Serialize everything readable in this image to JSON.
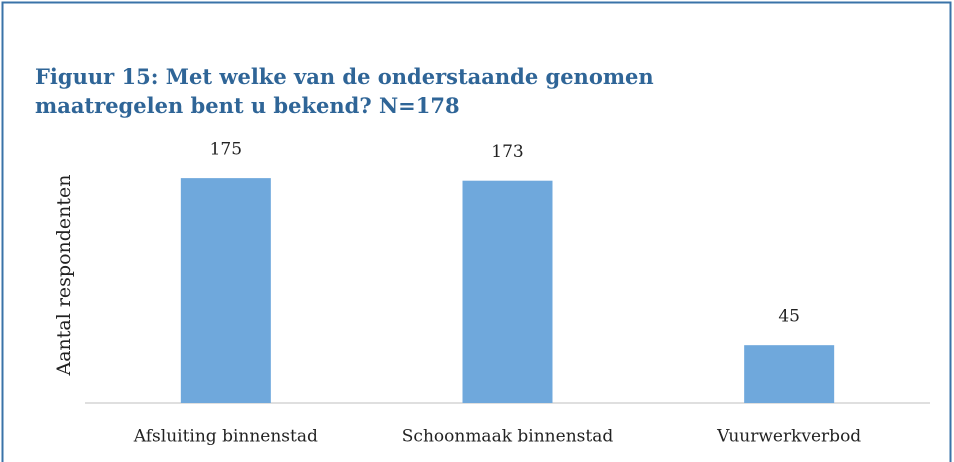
{
  "chart_data": {
    "type": "bar",
    "title": "Figuur 15: Met welke van de onderstaande genomen maatregelen bent u bekend? N=178",
    "y_label": "Aantal respondenten",
    "categories": [
      "Afsluiting binnenstad",
      "Schoonmaak binnenstad",
      "Vuurwerkverbod"
    ],
    "values": [
      175,
      173,
      45
    ],
    "color": "#6fa8dc",
    "ylim": [
      0,
      200
    ]
  }
}
